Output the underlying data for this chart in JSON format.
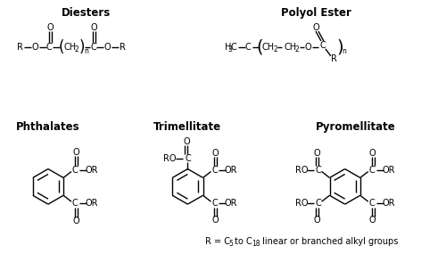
{
  "title_diesters": "Diesters",
  "title_polyol": "Polyol Ester",
  "title_phthalates": "Phthalates",
  "title_trimellitate": "Trimellitate",
  "title_pyromellitate": "Pyromellitate",
  "bg_color": "#ffffff",
  "line_color": "#000000",
  "title_fontsize": 8.5,
  "label_fontsize": 7,
  "small_fontsize": 5.5,
  "footnote_fontsize": 7
}
